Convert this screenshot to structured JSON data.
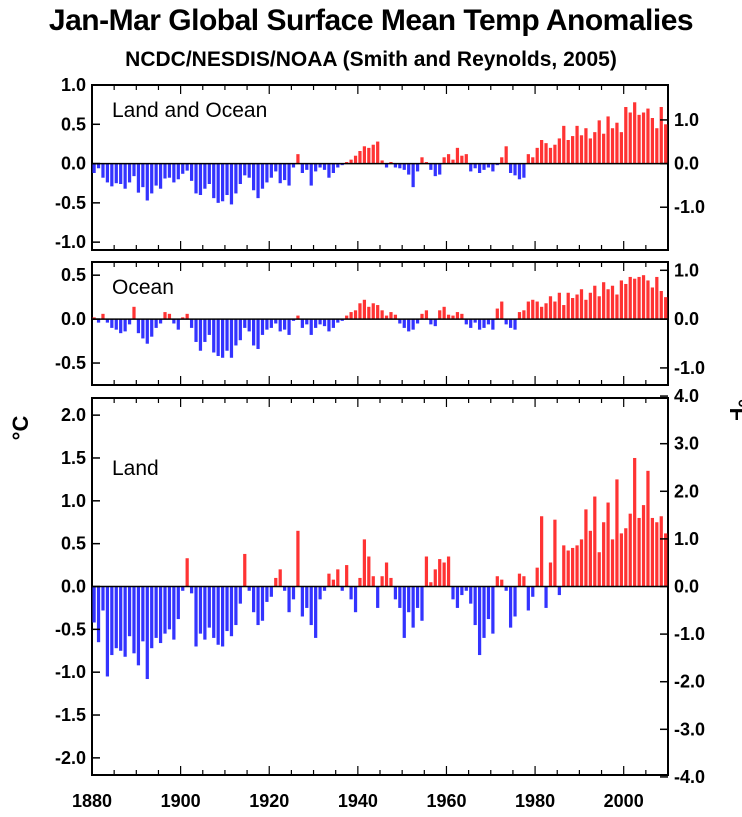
{
  "title": "Jan-Mar Global Surface Mean Temp Anomalies",
  "subtitle": "NCDC/NESDIS/NOAA (Smith and Reynolds, 2005)",
  "left_unit": "°C",
  "right_unit": "°F",
  "colors": {
    "positive": "#ff3333",
    "negative": "#3333ff",
    "zero_line": "#000000"
  },
  "chart_data": [
    {
      "type": "bar",
      "panel_label": "Land and Ocean",
      "x_start": 1880,
      "x_end": 2009,
      "ylim": [
        -1.1,
        1.0
      ],
      "left_ticks": [
        "-1.0",
        "-0.5",
        "0.0",
        "0.5",
        "1.0"
      ],
      "right_ticks": [
        "-1.0",
        "0.0",
        "1.0"
      ],
      "values": [
        -0.12,
        -0.06,
        -0.18,
        -0.24,
        -0.29,
        -0.25,
        -0.26,
        -0.32,
        -0.24,
        -0.16,
        -0.37,
        -0.3,
        -0.47,
        -0.38,
        -0.28,
        -0.32,
        -0.19,
        -0.18,
        -0.24,
        -0.2,
        -0.13,
        -0.09,
        -0.22,
        -0.38,
        -0.4,
        -0.32,
        -0.26,
        -0.44,
        -0.5,
        -0.48,
        -0.4,
        -0.52,
        -0.38,
        -0.26,
        -0.15,
        -0.18,
        -0.34,
        -0.44,
        -0.32,
        -0.24,
        -0.18,
        -0.1,
        -0.25,
        -0.21,
        -0.28,
        -0.05,
        0.12,
        -0.12,
        -0.08,
        -0.28,
        -0.1,
        -0.05,
        -0.08,
        -0.18,
        -0.12,
        -0.05,
        -0.02,
        0.02,
        0.05,
        0.1,
        0.16,
        0.22,
        0.2,
        0.24,
        0.28,
        0.04,
        -0.05,
        0.02,
        -0.05,
        -0.06,
        -0.08,
        -0.14,
        -0.3,
        -0.1,
        0.08,
        0.02,
        -0.08,
        -0.16,
        -0.14,
        0.08,
        0.12,
        0.05,
        0.2,
        0.1,
        0.12,
        -0.1,
        -0.06,
        -0.12,
        -0.08,
        -0.05,
        -0.1,
        -0.02,
        0.08,
        0.22,
        -0.12,
        -0.15,
        -0.2,
        -0.18,
        0.12,
        0.08,
        0.2,
        0.3,
        0.26,
        0.2,
        0.24,
        0.32,
        0.48,
        0.3,
        0.35,
        0.48,
        0.36,
        0.45,
        0.32,
        0.4,
        0.55,
        0.38,
        0.6,
        0.45,
        0.52,
        0.4,
        0.72,
        0.65,
        0.78,
        0.62,
        0.65,
        0.7,
        0.58,
        0.45,
        0.72,
        0.5
      ]
    },
    {
      "type": "bar",
      "panel_label": "Ocean",
      "x_start": 1880,
      "x_end": 2009,
      "ylim": [
        -0.75,
        0.65
      ],
      "left_ticks": [
        "-0.5",
        "0.0",
        "0.5"
      ],
      "right_ticks": [
        "-1.0",
        "0.0",
        "1.0"
      ],
      "values": [
        0.02,
        -0.04,
        0.06,
        -0.04,
        -0.1,
        -0.12,
        -0.16,
        -0.14,
        -0.06,
        0.14,
        -0.16,
        -0.22,
        -0.28,
        -0.2,
        -0.1,
        -0.05,
        0.08,
        0.06,
        -0.05,
        -0.12,
        0.02,
        0.06,
        -0.1,
        -0.26,
        -0.36,
        -0.26,
        -0.18,
        -0.38,
        -0.42,
        -0.44,
        -0.36,
        -0.44,
        -0.3,
        -0.24,
        -0.1,
        -0.14,
        -0.3,
        -0.34,
        -0.18,
        -0.12,
        -0.1,
        -0.05,
        -0.14,
        -0.12,
        -0.18,
        -0.02,
        0.04,
        -0.1,
        -0.06,
        -0.18,
        -0.1,
        -0.06,
        -0.08,
        -0.14,
        -0.1,
        -0.04,
        -0.02,
        0.04,
        0.08,
        0.1,
        0.18,
        0.22,
        0.14,
        0.18,
        0.16,
        0.1,
        0.04,
        0.08,
        0.05,
        -0.05,
        -0.1,
        -0.14,
        -0.12,
        -0.05,
        0.06,
        0.1,
        -0.06,
        -0.08,
        0.1,
        0.14,
        0.05,
        0.04,
        0.08,
        0.06,
        -0.06,
        -0.1,
        -0.04,
        -0.12,
        -0.1,
        -0.06,
        -0.12,
        0.12,
        0.2,
        -0.06,
        -0.1,
        -0.12,
        0.08,
        0.1,
        0.2,
        0.22,
        0.2,
        0.14,
        0.18,
        0.26,
        0.2,
        0.3,
        0.16,
        0.3,
        0.24,
        0.28,
        0.34,
        0.22,
        0.3,
        0.38,
        0.26,
        0.42,
        0.34,
        0.38,
        0.28,
        0.44,
        0.4,
        0.48,
        0.46,
        0.48,
        0.5,
        0.44,
        0.36,
        0.48,
        0.32,
        0.25
      ]
    },
    {
      "type": "bar",
      "panel_label": "Land",
      "x_start": 1880,
      "x_end": 2009,
      "ylim": [
        -2.2,
        2.2
      ],
      "left_ticks": [
        "-2.0",
        "-1.5",
        "-1.0",
        "-0.5",
        "0.0",
        "0.5",
        "1.0",
        "1.5",
        "2.0"
      ],
      "right_ticks": [
        "-4.0",
        "-3.0",
        "-2.0",
        "-1.0",
        "0.0",
        "1.0",
        "2.0",
        "3.0",
        "4.0"
      ],
      "x_ticks": [
        "1880",
        "1900",
        "1920",
        "1940",
        "1960",
        "1980",
        "2000"
      ],
      "values": [
        -0.42,
        -0.65,
        -0.28,
        -1.05,
        -0.8,
        -0.72,
        -0.75,
        -0.82,
        -0.58,
        -0.78,
        -0.92,
        -0.64,
        -1.08,
        -0.72,
        -0.6,
        -0.66,
        -0.55,
        -0.5,
        -0.62,
        -0.38,
        -0.05,
        0.33,
        -0.08,
        -0.7,
        -0.55,
        -0.62,
        -0.48,
        -0.6,
        -0.68,
        -0.7,
        -0.52,
        -0.58,
        -0.45,
        -0.2,
        0.38,
        -0.05,
        -0.3,
        -0.45,
        -0.4,
        -0.18,
        -0.12,
        0.1,
        0.2,
        -0.05,
        -0.3,
        -0.15,
        0.65,
        -0.35,
        -0.25,
        -0.45,
        -0.6,
        -0.15,
        -0.05,
        0.15,
        0.08,
        0.2,
        -0.05,
        0.25,
        -0.15,
        -0.3,
        0.1,
        0.55,
        0.35,
        0.12,
        -0.25,
        0.12,
        0.28,
        0.1,
        -0.15,
        -0.25,
        -0.6,
        -0.3,
        -0.48,
        -0.25,
        -0.4,
        0.35,
        0.05,
        0.2,
        0.32,
        0.28,
        0.35,
        -0.15,
        -0.25,
        -0.1,
        -0.05,
        -0.2,
        -0.45,
        -0.8,
        -0.6,
        -0.38,
        -0.55,
        0.12,
        0.08,
        -0.05,
        -0.48,
        -0.35,
        0.15,
        0.12,
        -0.28,
        -0.12,
        0.22,
        0.82,
        -0.25,
        0.28,
        0.78,
        -0.1,
        0.48,
        0.42,
        0.45,
        0.48,
        0.55,
        0.9,
        0.65,
        1.05,
        0.4,
        0.75,
        0.98,
        0.55,
        1.25,
        0.62,
        0.68,
        0.85,
        1.5,
        0.8,
        0.95,
        1.35,
        0.8,
        0.75,
        0.82,
        0.62
      ]
    }
  ]
}
